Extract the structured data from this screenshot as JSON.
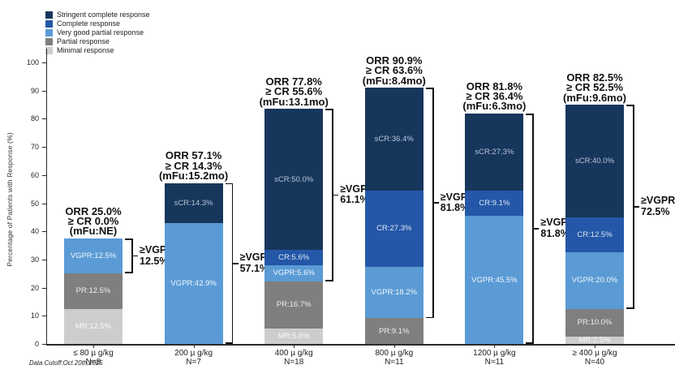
{
  "chart_data": {
    "type": "bar",
    "stacked": true,
    "title": "",
    "ylabel": "Percentage of Patients with Response (%)",
    "xlabel": "",
    "ylim": [
      0,
      100
    ],
    "yticks": [
      0,
      10,
      20,
      30,
      40,
      50,
      60,
      70,
      80,
      90,
      100
    ],
    "grid": false,
    "legend_position": "upper-left",
    "footnote": "Data Cutoff:Oct 20th,2025",
    "series_colors": {
      "sCR": "#17365c",
      "CR": "#2457a7",
      "VGPR": "#5b9bd5",
      "PR": "#7f7f7f",
      "MR": "#cdcdcd"
    },
    "legend": [
      {
        "key": "sCR",
        "label": "Stringent complete response",
        "color": "#17365c"
      },
      {
        "key": "CR",
        "label": "Complete response",
        "color": "#2457a7"
      },
      {
        "key": "VGPR",
        "label": "Very good partial response",
        "color": "#5b9bd5"
      },
      {
        "key": "PR",
        "label": "Partial response",
        "color": "#7f7f7f"
      },
      {
        "key": "MR",
        "label": "Minimal response",
        "color": "#cdcdcd"
      }
    ],
    "bars": [
      {
        "dose": "≤ 80 µ g/kg",
        "n": "N=8",
        "annotation": [
          "ORR 25.0%",
          "≥ CR 0.0%",
          "(mFu:NE)"
        ],
        "segments": [
          {
            "key": "MR",
            "value": 12.5,
            "label": "MR:12.5%"
          },
          {
            "key": "PR",
            "value": 12.5,
            "label": "PR:12.5%"
          },
          {
            "key": "VGPR",
            "value": 12.5,
            "label": "VGPR:12.5%"
          }
        ],
        "bracket": {
          "from": 25.0,
          "to": 37.5,
          "label": [
            "≥VGPR",
            "12.5%"
          ]
        }
      },
      {
        "dose": "200 µ g/kg",
        "n": "N=7",
        "annotation": [
          "ORR 57.1%",
          "≥ CR 14.3%",
          "(mFu:15.2mo)"
        ],
        "segments": [
          {
            "key": "VGPR",
            "value": 42.9,
            "label": "VGPR:42.9%"
          },
          {
            "key": "sCR",
            "value": 14.3,
            "label": "sCR:14.3%"
          }
        ],
        "bracket": {
          "from": 0.0,
          "to": 57.2,
          "label": [
            "≥VGPR",
            "57.1%"
          ]
        }
      },
      {
        "dose": "400 µ g/kg",
        "n": "N=18",
        "annotation": [
          "ORR 77.8%",
          "≥ CR 55.6%",
          "(mFu:13.1mo)"
        ],
        "segments": [
          {
            "key": "MR",
            "value": 5.6,
            "label": "MR:5.6%"
          },
          {
            "key": "PR",
            "value": 16.7,
            "label": "PR:16.7%"
          },
          {
            "key": "VGPR",
            "value": 5.6,
            "label": "VGPR:5.6%"
          },
          {
            "key": "CR",
            "value": 5.6,
            "label": "CR:5.6%"
          },
          {
            "key": "sCR",
            "value": 50.0,
            "label": "sCR:50.0%"
          }
        ],
        "bracket": {
          "from": 22.3,
          "to": 83.5,
          "label": [
            "≥VGPR",
            "61.1%"
          ]
        }
      },
      {
        "dose": "800 µ g/kg",
        "n": "N=11",
        "annotation": [
          "ORR 90.9%",
          "≥ CR 63.6%",
          "(mFu:8.4mo)"
        ],
        "segments": [
          {
            "key": "PR",
            "value": 9.1,
            "label": "PR:9.1%"
          },
          {
            "key": "VGPR",
            "value": 18.2,
            "label": "VGPR:18.2%"
          },
          {
            "key": "CR",
            "value": 27.3,
            "label": "CR:27.3%"
          },
          {
            "key": "sCR",
            "value": 36.4,
            "label": "sCR:36.4%"
          }
        ],
        "bracket": {
          "from": 9.1,
          "to": 91.0,
          "label": [
            "≥VGPR",
            "81.8%"
          ]
        }
      },
      {
        "dose": "1200 µ g/kg",
        "n": "N=11",
        "annotation": [
          "ORR 81.8%",
          "≥ CR 36.4%",
          "(mFu:6.3mo)"
        ],
        "segments": [
          {
            "key": "VGPR",
            "value": 45.5,
            "label": "VGPR:45.5%"
          },
          {
            "key": "CR",
            "value": 9.1,
            "label": "CR:9.1%"
          },
          {
            "key": "sCR",
            "value": 27.3,
            "label": "sCR:27.3%"
          }
        ],
        "bracket": {
          "from": 0.0,
          "to": 81.9,
          "label": [
            "≥VGPR",
            "81.8%"
          ]
        }
      },
      {
        "dose": "≥ 400 µ g/kg",
        "n": "N=40",
        "annotation": [
          "ORR 82.5%",
          "≥ CR 52.5%",
          "(mFu:9.6mo)"
        ],
        "segments": [
          {
            "key": "MR",
            "value": 2.5,
            "label": "MR:2.5%"
          },
          {
            "key": "PR",
            "value": 10.0,
            "label": "PR:10.0%"
          },
          {
            "key": "VGPR",
            "value": 20.0,
            "label": "VGPR:20.0%"
          },
          {
            "key": "CR",
            "value": 12.5,
            "label": "CR:12.5%"
          },
          {
            "key": "sCR",
            "value": 40.0,
            "label": "sCR:40.0%"
          }
        ],
        "bracket": {
          "from": 12.5,
          "to": 85.0,
          "label": [
            "≥VGPR",
            "72.5%"
          ]
        }
      }
    ]
  }
}
